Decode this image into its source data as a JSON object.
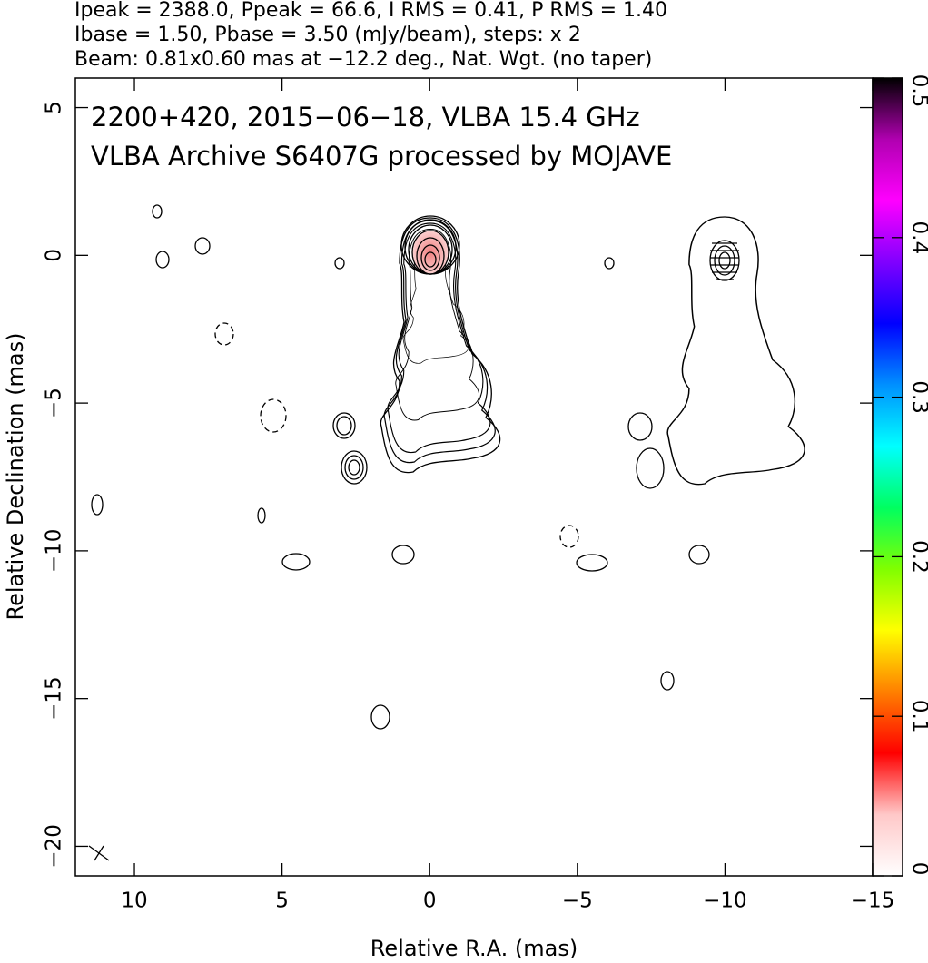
{
  "chart_data": {
    "type": "contour",
    "header_lines": [
      "Ipeak = 2388.0, Ppeak = 66.6, I RMS = 0.41, P RMS = 1.40",
      "Ibase = 1.50, Pbase = 3.50 (mJy/beam), steps: x 2",
      "Beam: 0.81x0.60 mas at −12.2 deg., Nat. Wgt. (no taper)"
    ],
    "annotations": [
      "2200+420, 2015−06−18, VLBA 15.4 GHz",
      "VLBA Archive S6407G processed by MOJAVE"
    ],
    "xlabel": "Relative R.A. (mas)",
    "ylabel": "Relative Declination (mas)",
    "xlim": [
      12,
      -15
    ],
    "ylim": [
      -21,
      6
    ],
    "xticks": [
      10,
      5,
      0,
      {
        "value": -5,
        "label": "−5"
      },
      {
        "value": -10,
        "label": "−10"
      },
      {
        "value": -15,
        "label": "−15"
      }
    ],
    "yticks": [
      5,
      0,
      {
        "value": -5,
        "label": "−5"
      },
      {
        "value": -10,
        "label": "−10"
      },
      {
        "value": -15,
        "label": "−15"
      },
      {
        "value": -20,
        "label": "−20"
      }
    ],
    "colorbar": {
      "clim": [
        0,
        0.5
      ],
      "ticks": [
        0,
        0.1,
        0.2,
        0.3,
        0.4,
        0.5
      ],
      "colors": [
        "#ffffff",
        "#ffc8c8",
        "#ff0000",
        "#ff8000",
        "#ffff00",
        "#80ff00",
        "#00ff60",
        "#00ffff",
        "#0090ff",
        "#0000ff",
        "#8000ff",
        "#ff00ff",
        "#b000b0",
        "#000000"
      ]
    }
  }
}
